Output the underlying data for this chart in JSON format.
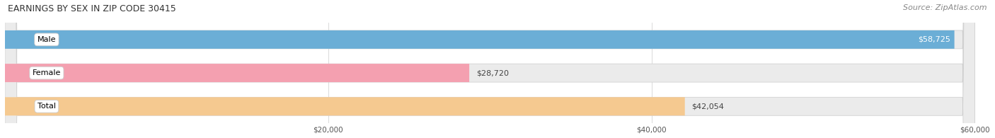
{
  "title": "EARNINGS BY SEX IN ZIP CODE 30415",
  "source": "Source: ZipAtlas.com",
  "categories": [
    "Male",
    "Female",
    "Total"
  ],
  "values": [
    58725,
    28720,
    42054
  ],
  "bar_colors": [
    "#6baed6",
    "#f4a0b0",
    "#f5c990"
  ],
  "bar_bg_color": "#ebebeb",
  "xmin": 0,
  "xmax": 60000,
  "xticks": [
    20000,
    40000,
    60000
  ],
  "xtick_labels": [
    "$20,000",
    "$40,000",
    "$60,000"
  ],
  "value_labels": [
    "$58,725",
    "$28,720",
    "$42,054"
  ],
  "title_fontsize": 9,
  "source_fontsize": 8,
  "bar_label_fontsize": 8,
  "value_fontsize": 8,
  "background_color": "#ffffff",
  "bar_height": 0.55
}
